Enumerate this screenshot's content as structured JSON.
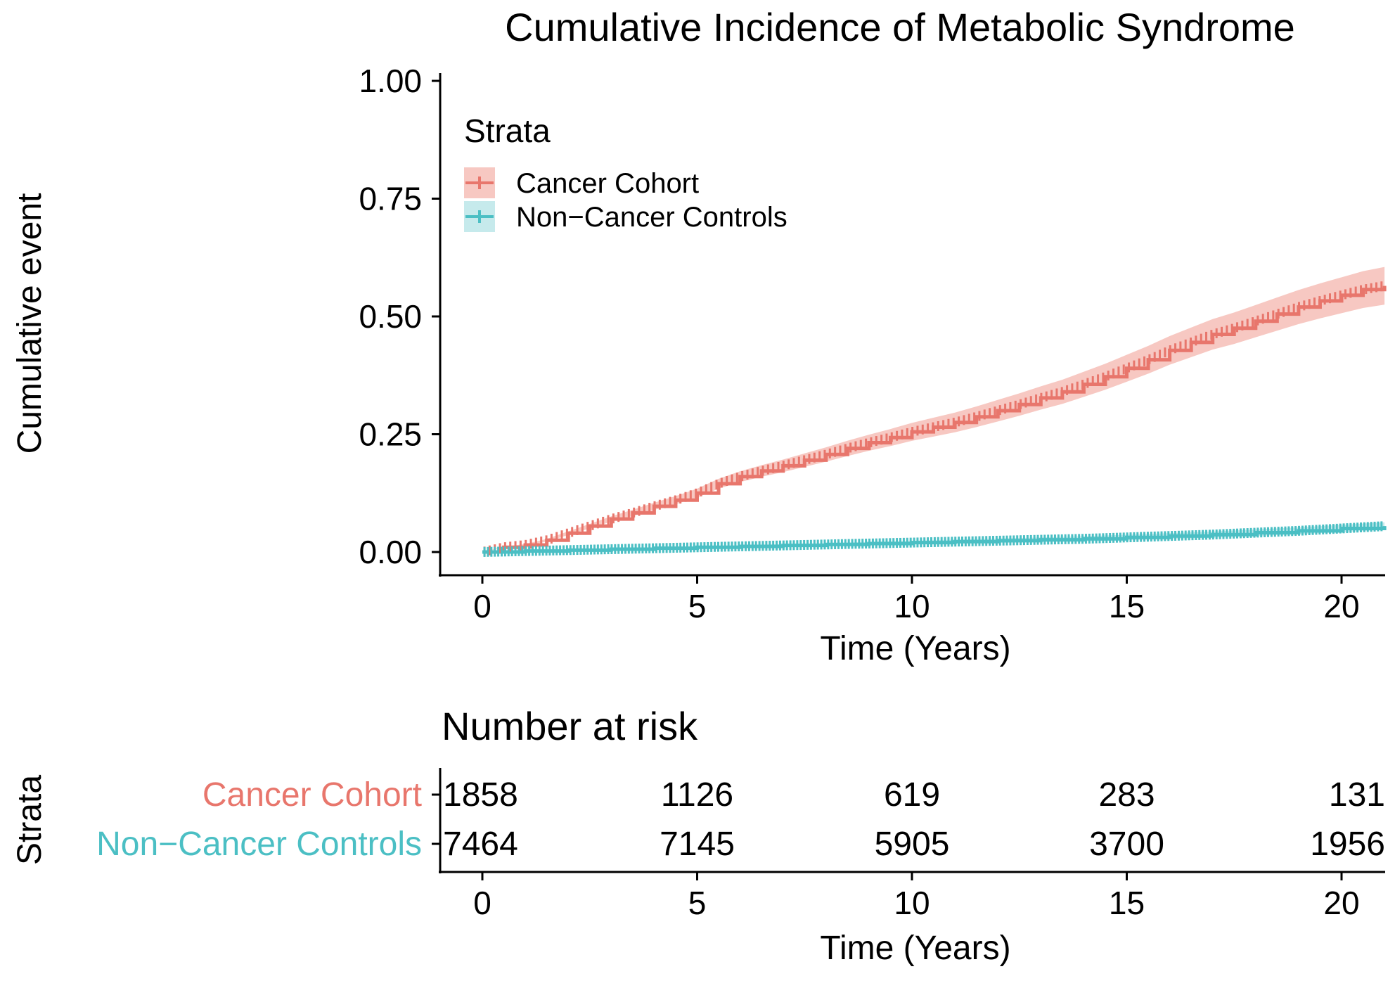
{
  "chart_data": {
    "type": "line",
    "title": "Cumulative Incidence of Metabolic Syndrome",
    "xlabel": "Time (Years)",
    "ylabel": "Cumulative event",
    "xlim": [
      -1,
      21
    ],
    "ylim": [
      -0.05,
      1.0
    ],
    "x_ticks": [
      "0",
      "5",
      "10",
      "15",
      "20"
    ],
    "y_ticks": [
      "0.00",
      "0.25",
      "0.50",
      "0.75",
      "1.00"
    ],
    "grid": false,
    "legend": {
      "title": "Strata",
      "position": "top-left",
      "entries": [
        "Cancer Cohort",
        "Non−Cancer Controls"
      ]
    },
    "series": [
      {
        "name": "Cancer Cohort",
        "color": "#E8766C",
        "band_color": "#F4B5AE",
        "x": [
          0,
          0.5,
          1,
          1.5,
          2,
          2.5,
          3,
          3.5,
          4,
          4.5,
          5,
          5.5,
          6,
          6.5,
          7,
          7.5,
          8,
          8.5,
          9,
          9.5,
          10,
          10.5,
          11,
          11.5,
          12,
          12.5,
          13,
          13.5,
          14,
          14.5,
          15,
          15.5,
          16,
          16.5,
          17,
          17.5,
          18,
          18.5,
          19,
          19.5,
          20,
          20.5,
          21
        ],
        "y": [
          0.0,
          0.01,
          0.015,
          0.025,
          0.04,
          0.055,
          0.07,
          0.083,
          0.097,
          0.11,
          0.125,
          0.145,
          0.16,
          0.172,
          0.183,
          0.195,
          0.207,
          0.22,
          0.232,
          0.243,
          0.255,
          0.265,
          0.275,
          0.287,
          0.3,
          0.313,
          0.327,
          0.34,
          0.356,
          0.372,
          0.39,
          0.408,
          0.428,
          0.445,
          0.462,
          0.475,
          0.49,
          0.505,
          0.52,
          0.533,
          0.545,
          0.557,
          0.565
        ],
        "ci_half_width_end": 0.04
      },
      {
        "name": "Non−Cancer Controls",
        "color": "#4BBFC4",
        "band_color": "#B3E3E5",
        "x": [
          0,
          1,
          2,
          3,
          4,
          5,
          6,
          7,
          8,
          9,
          10,
          11,
          12,
          13,
          14,
          15,
          16,
          17,
          18,
          19,
          20,
          21
        ],
        "y": [
          0.0,
          0.002,
          0.004,
          0.006,
          0.008,
          0.01,
          0.012,
          0.014,
          0.016,
          0.018,
          0.02,
          0.022,
          0.024,
          0.026,
          0.028,
          0.031,
          0.034,
          0.037,
          0.041,
          0.045,
          0.05,
          0.055
        ],
        "ci_half_width_end": 0.008
      }
    ],
    "risk_table": {
      "title": "Number at risk",
      "ylabel": "Strata",
      "xlabel": "Time (Years)",
      "times": [
        0,
        5,
        10,
        15,
        20
      ],
      "time_labels": [
        "0",
        "5",
        "10",
        "15",
        "20"
      ],
      "rows": [
        {
          "label": "Cancer Cohort",
          "color": "#E8766C",
          "values": [
            "1858",
            "1126",
            "619",
            "283",
            "131"
          ]
        },
        {
          "label": "Non−Cancer Controls",
          "color": "#4BBFC4",
          "values": [
            "7464",
            "7145",
            "5905",
            "3700",
            "1956"
          ]
        }
      ]
    }
  }
}
